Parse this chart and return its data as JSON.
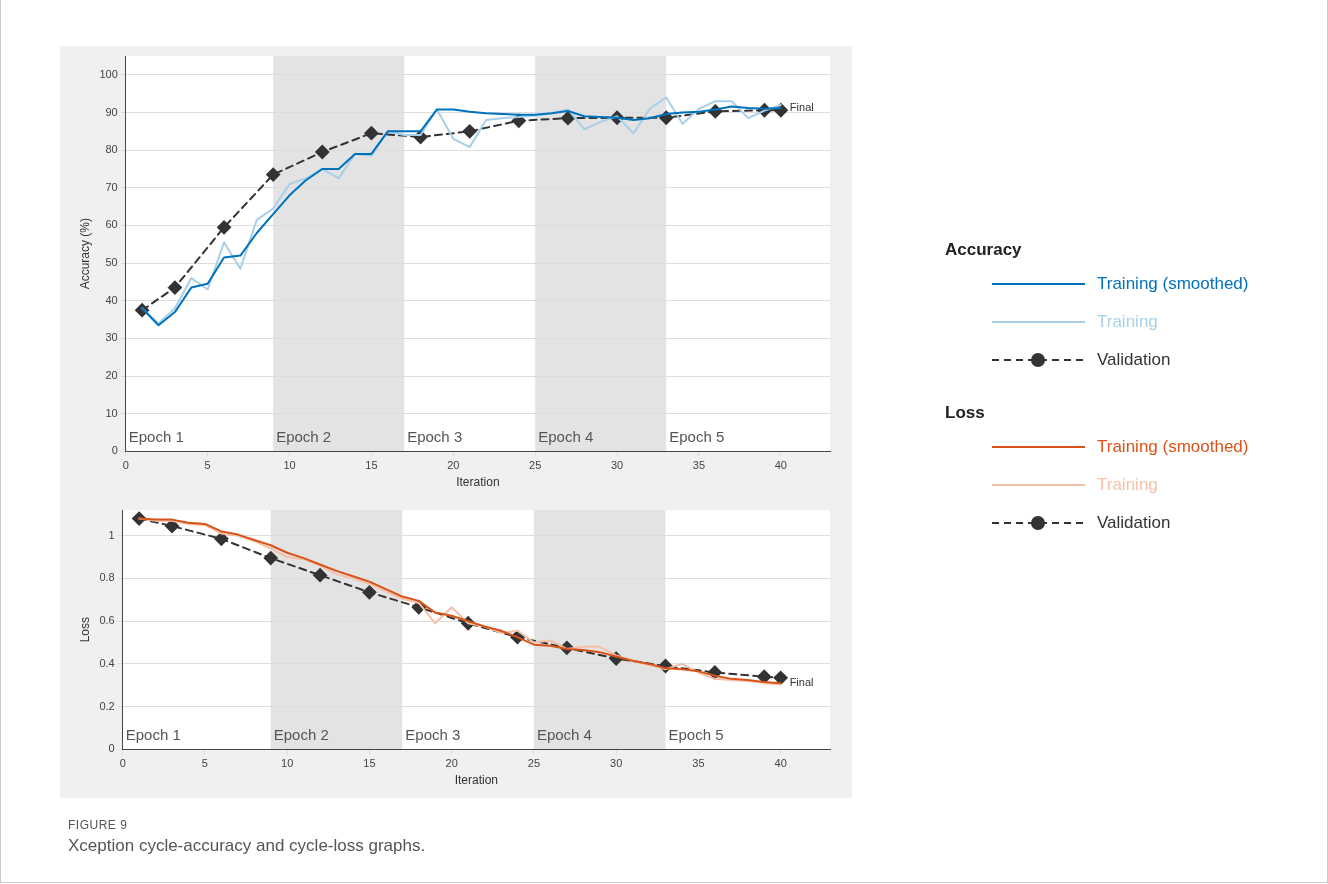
{
  "chart_data": [
    {
      "type": "line",
      "xlabel": "Iteration",
      "ylabel": "Accuracy (%)",
      "legend_title": "Accuracy",
      "legend": "right",
      "grid": "y",
      "xlim": [
        0,
        43
      ],
      "xticks": [
        0,
        5,
        10,
        15,
        20,
        25,
        30,
        35,
        40
      ],
      "ylim": [
        0,
        105
      ],
      "yticks": [
        0,
        10,
        20,
        30,
        40,
        50,
        60,
        70,
        80,
        90,
        100
      ],
      "x": [
        1,
        2,
        3,
        4,
        5,
        6,
        7,
        8,
        9,
        10,
        11,
        12,
        13,
        14,
        15,
        16,
        17,
        18,
        19,
        20,
        21,
        22,
        23,
        24,
        25,
        26,
        27,
        28,
        29,
        30,
        31,
        32,
        33,
        34,
        35,
        36,
        37,
        38,
        39,
        40
      ],
      "series": [
        {
          "name": "Training (smoothed)",
          "color": "#0072bd",
          "marker": "none",
          "line_style": "solid",
          "values": [
            38,
            33.5,
            37,
            43.5,
            44.5,
            51.5,
            52,
            58,
            63,
            68,
            72,
            75,
            75,
            79,
            79,
            85,
            85,
            85,
            90.8,
            90.8,
            90.2,
            89.8,
            89.6,
            89.4,
            89.4,
            89.8,
            90.4,
            89,
            88.8,
            88.6,
            88,
            88.5,
            89.6,
            90,
            90.2,
            90.8,
            91.6,
            91.2,
            91,
            91.2
          ]
        },
        {
          "name": "Training",
          "color": "#a8cfe8",
          "marker": "none",
          "line_style": "solid",
          "values": [
            38,
            34,
            38,
            46,
            43,
            55.5,
            48.5,
            61.5,
            64.5,
            71,
            72.5,
            75,
            72.5,
            79,
            78.5,
            85,
            84,
            84,
            90.8,
            83,
            80.8,
            88,
            88.5,
            88.8,
            89.2,
            89.8,
            90.8,
            85.5,
            87.5,
            89,
            84.5,
            91,
            94,
            87,
            91,
            93,
            93,
            88.5,
            90.5,
            92
          ]
        },
        {
          "name": "Validation",
          "color": "#333333",
          "marker": "diamond",
          "line_style": "dashed",
          "x": [
            1,
            3,
            6,
            9,
            12,
            15,
            18,
            21,
            24,
            27,
            30,
            33,
            36,
            39,
            40
          ],
          "values": [
            37.5,
            43.5,
            59.5,
            73.5,
            79.5,
            84.5,
            83.5,
            85,
            87.8,
            88.5,
            88.6,
            88.6,
            90.3,
            90.6,
            90.6
          ]
        }
      ],
      "bands": [
        {
          "axis": "x",
          "from": 9,
          "to": 17,
          "color": "#e3e3e3"
        },
        {
          "axis": "x",
          "from": 25,
          "to": 33,
          "color": "#e3e3e3"
        }
      ],
      "annotations": [
        {
          "text": "Final",
          "x": 40,
          "y": 91.2
        },
        "Epoch 1",
        "Epoch 2",
        "Epoch 3",
        "Epoch 4",
        "Epoch 5"
      ]
    },
    {
      "type": "line",
      "xlabel": "Iteration",
      "ylabel": "Loss",
      "legend_title": "Loss",
      "legend": "right",
      "grid": "y",
      "xlim": [
        0,
        43
      ],
      "xticks": [
        0,
        5,
        10,
        15,
        20,
        25,
        30,
        35,
        40
      ],
      "ylim": [
        0,
        1.12
      ],
      "yticks": [
        0,
        0.2,
        0.4,
        0.6,
        0.8,
        1
      ],
      "x": [
        1,
        2,
        3,
        4,
        5,
        6,
        7,
        8,
        9,
        10,
        11,
        12,
        13,
        14,
        15,
        16,
        17,
        18,
        19,
        20,
        21,
        22,
        23,
        24,
        25,
        26,
        27,
        28,
        29,
        30,
        31,
        32,
        33,
        34,
        35,
        36,
        37,
        38,
        39,
        40
      ],
      "series": [
        {
          "name": "Training (smoothed)",
          "color": "#d95319",
          "marker": "none",
          "line_style": "solid",
          "values": [
            1.08,
            1.075,
            1.075,
            1.06,
            1.055,
            1.02,
            1.005,
            0.98,
            0.955,
            0.92,
            0.895,
            0.865,
            0.835,
            0.81,
            0.785,
            0.75,
            0.715,
            0.695,
            0.64,
            0.625,
            0.6,
            0.575,
            0.555,
            0.525,
            0.49,
            0.485,
            0.47,
            0.465,
            0.455,
            0.435,
            0.415,
            0.4,
            0.38,
            0.375,
            0.365,
            0.345,
            0.33,
            0.325,
            0.315,
            0.31
          ]
        },
        {
          "name": "Training",
          "color": "#f4c0a8",
          "marker": "none",
          "line_style": "solid",
          "values": [
            1.08,
            1.07,
            1.07,
            1.055,
            1.05,
            1.01,
            1.0,
            0.975,
            0.94,
            0.9,
            0.89,
            0.86,
            0.82,
            0.8,
            0.775,
            0.74,
            0.705,
            0.685,
            0.59,
            0.665,
            0.59,
            0.575,
            0.545,
            0.555,
            0.5,
            0.51,
            0.47,
            0.48,
            0.48,
            0.44,
            0.415,
            0.395,
            0.375,
            0.4,
            0.36,
            0.33,
            0.325,
            0.32,
            0.31,
            0.305
          ]
        },
        {
          "name": "Validation",
          "color": "#333333",
          "marker": "diamond",
          "line_style": "dashed",
          "x": [
            1,
            3,
            6,
            9,
            12,
            15,
            18,
            21,
            24,
            27,
            30,
            33,
            36,
            39,
            40
          ],
          "values": [
            1.08,
            1.045,
            0.985,
            0.895,
            0.815,
            0.735,
            0.665,
            0.59,
            0.525,
            0.475,
            0.425,
            0.39,
            0.36,
            0.34,
            0.335
          ]
        }
      ],
      "bands": [
        {
          "axis": "x",
          "from": 9,
          "to": 17,
          "color": "#e3e3e3"
        },
        {
          "axis": "x",
          "from": 25,
          "to": 33,
          "color": "#e3e3e3"
        }
      ],
      "annotations": [
        {
          "text": "Final",
          "x": 40,
          "y": 0.31
        },
        "Epoch 1",
        "Epoch 2",
        "Epoch 3",
        "Epoch 4",
        "Epoch 5",
        "FIGURE 9",
        "Xception cycle-accuracy and cycle-loss graphs."
      ]
    }
  ]
}
